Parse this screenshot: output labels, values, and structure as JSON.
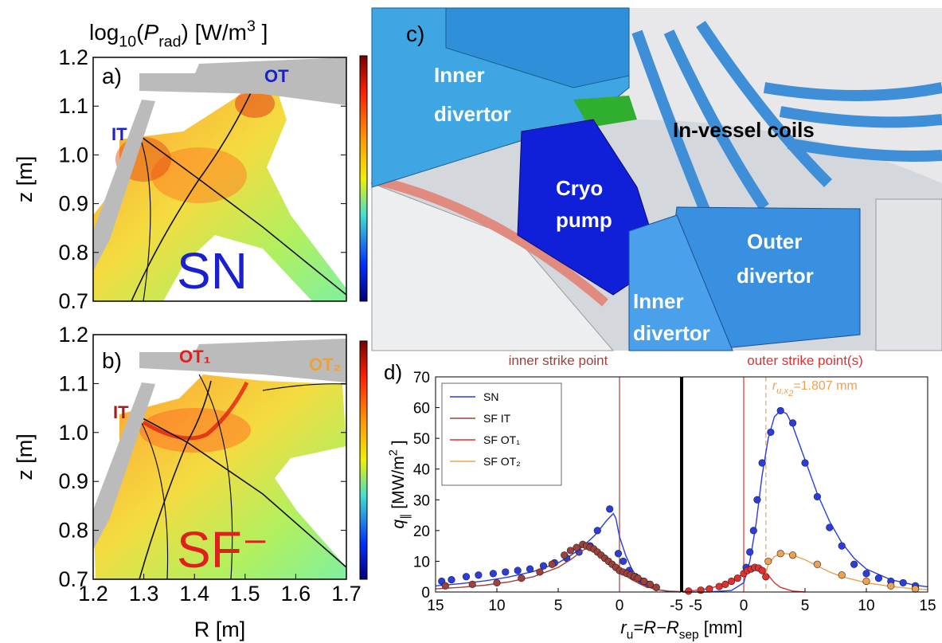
{
  "chart_data": [
    {
      "type": "heatmap",
      "panel_label": "a)",
      "title": [
        "log",
        "10",
        "(",
        "P",
        "rad",
        ") [W/m",
        "3",
        " ]"
      ],
      "ylabel": "z [m]",
      "ylim": [
        0.7,
        1.2
      ],
      "yticks": [
        0.7,
        0.8,
        0.9,
        {
          "value": 1.0,
          "label": "1.0"
        },
        1.1,
        1.2
      ],
      "labels": [
        "OT",
        "IT"
      ],
      "big_label": "SN"
    },
    {
      "type": "heatmap",
      "panel_label": "b)",
      "ylabel": "z [m]",
      "xlabel": "R [m]",
      "xlim": [
        1.2,
        1.7
      ],
      "xticks": [
        1.2,
        1.3,
        1.4,
        1.5,
        1.6,
        1.7
      ],
      "ylim": [
        0.7,
        1.2
      ],
      "yticks": [
        0.7,
        0.8,
        0.9,
        {
          "value": 1.0,
          "label": "1.0"
        },
        1.1,
        1.2
      ],
      "labels": [
        "OT₁",
        "OT₂",
        "IT"
      ],
      "big_label": "SF⁻"
    },
    {
      "type": "line",
      "panel_label": "d)",
      "ylabel": [
        "q",
        "∥",
        " [MW/m",
        "2",
        " ]"
      ],
      "xlabel": [
        "r",
        "u",
        "=R−R",
        "sep",
        " [mm]"
      ],
      "xlim": [
        15,
        -5
      ],
      "xticks": [
        15,
        10,
        5,
        0,
        -5
      ],
      "ylim": [
        0,
        70
      ],
      "yticks": [
        0,
        10,
        20,
        30,
        40,
        50,
        60,
        70
      ],
      "vline": {
        "x": 0,
        "color": "#a0403a",
        "label": "inner strike point"
      },
      "series": [
        {
          "name": "SN",
          "color": "#2b3de0",
          "x": [
            15,
            13,
            11,
            9,
            7,
            5,
            4,
            3,
            2,
            1.5,
            1,
            0.5,
            0.3,
            0,
            -0.5,
            -1,
            -1.5,
            -2,
            -3,
            -4,
            -5
          ],
          "values": [
            2,
            2.7,
            3.6,
            4.9,
            6.7,
            9.5,
            11.8,
            14.8,
            18.5,
            21,
            23.5,
            25.5,
            24,
            18,
            12,
            7.5,
            4.5,
            2.5,
            0.8,
            0.2,
            0
          ],
          "points": {
            "x": [
              14.5,
              13.7,
              12.5,
              11.5,
              10.3,
              9.3,
              8.3,
              7.3,
              6.2,
              5.3,
              4.3,
              3.3,
              2.4,
              1.8,
              0.8,
              0.1,
              -0.3,
              -0.8,
              -1.3,
              -1.8,
              -2.3,
              -3
            ],
            "values": [
              3.5,
              4,
              5,
              5.5,
              6,
              6.5,
              7,
              7.5,
              8.5,
              9.5,
              11,
              13,
              15,
              20,
              27,
              12.5,
              10,
              7,
              5,
              3.5,
              2.5,
              1.5
            ]
          }
        },
        {
          "name": "SF IT",
          "color": "#a0403a",
          "x": [
            15,
            13,
            11,
            9,
            7,
            5,
            4,
            3,
            2.5,
            2,
            1,
            0,
            -1,
            -2,
            -3,
            -4,
            -5
          ],
          "values": [
            1,
            1.5,
            2.2,
            3.3,
            5,
            8,
            10.5,
            13.5,
            14.8,
            14.5,
            11,
            7,
            4,
            2,
            0.8,
            0.3,
            0.1
          ],
          "points": {
            "x": [
              14.2,
              12,
              10,
              8,
              6.5,
              5.5,
              4.5,
              4,
              3.5,
              3,
              2.7,
              2.4,
              2.1,
              1.8,
              1.5,
              1.2,
              0.9,
              0.6,
              0.3,
              0,
              -0.3,
              -0.6,
              -0.9,
              -1.2,
              -1.5,
              -2,
              -2.5,
              -3
            ],
            "values": [
              2,
              2.5,
              3,
              4.5,
              6.5,
              9,
              12,
              13.5,
              14.5,
              15.5,
              15,
              14.5,
              14,
              13,
              12,
              11,
              10,
              9,
              8,
              7,
              6.5,
              6,
              5.5,
              5,
              4.5,
              3.5,
              2.5,
              1.5
            ]
          }
        }
      ]
    },
    {
      "type": "line",
      "xlim": [
        -5,
        15
      ],
      "xticks": [
        -5,
        0,
        5,
        10,
        15
      ],
      "ylim": [
        0,
        70
      ],
      "vline": {
        "x": 0,
        "color": "#e03030",
        "label": "outer strike point(s)"
      },
      "annotation": {
        "value": 1.807,
        "color": "#f0a050",
        "parts": [
          "r",
          "u,x",
          "2",
          "="
        ],
        "unit": " mm"
      },
      "series": [
        {
          "color": "#2b3de0",
          "x": [
            -5,
            -3,
            -1,
            0,
            0.5,
            1,
            1.5,
            2,
            2.5,
            3,
            3.5,
            4,
            5,
            6,
            7,
            8,
            9,
            10,
            12,
            14,
            15
          ],
          "values": [
            0,
            0,
            0.5,
            3,
            10,
            22,
            38,
            50,
            57,
            59,
            58,
            54,
            43,
            32,
            23,
            16,
            11,
            7.5,
            4,
            2.2,
            1.7
          ],
          "points": {
            "x": [
              0.2,
              0.5,
              0.8,
              1.1,
              1.5,
              2.2,
              3,
              4,
              5,
              6,
              7,
              8,
              9,
              10,
              11,
              12,
              13,
              14
            ],
            "values": [
              8,
              13,
              20,
              30,
              42,
              52,
              59,
              55,
              42,
              31,
              21,
              15,
              9,
              6,
              4.5,
              3.5,
              3,
              2
            ]
          }
        },
        {
          "name": "SF OT₁",
          "color": "#e03030",
          "x": [
            -5,
            -4,
            -3,
            -2,
            -1,
            0,
            0.5,
            1,
            1.5,
            2,
            2.5,
            3,
            4,
            5
          ],
          "values": [
            0.2,
            0.5,
            1,
            2,
            3.5,
            6,
            7.5,
            8,
            7.5,
            5.5,
            3,
            1.5,
            0.3,
            0
          ],
          "points": {
            "x": [
              -4.5,
              -3.5,
              -2.8,
              -2,
              -1.5,
              -1,
              -0.5,
              0,
              0.3,
              0.6,
              0.9,
              1.2,
              1.5,
              1.8
            ],
            "values": [
              0.3,
              0.6,
              1,
              1.8,
              2.5,
              3.5,
              4.5,
              6,
              7,
              7.5,
              8,
              7.8,
              7,
              5
            ]
          }
        },
        {
          "name": "SF OT₂",
          "color": "#f0a050",
          "x": [
            1.807,
            2,
            2.5,
            3,
            3.5,
            4,
            5,
            6,
            7,
            8,
            10,
            12,
            14,
            15
          ],
          "values": [
            6,
            9,
            11.5,
            12.5,
            12.5,
            12,
            10.5,
            8.5,
            6.5,
            5,
            3,
            1.8,
            1,
            0.8
          ],
          "points": {
            "x": [
              2,
              3,
              4,
              6,
              8,
              10,
              12,
              14
            ],
            "values": [
              10,
              12.5,
              12,
              9,
              5.5,
              3.5,
              2,
              1
            ]
          }
        }
      ]
    }
  ],
  "photo": {
    "panel_label": "c)",
    "labels": [
      [
        "Inner",
        "divertor"
      ],
      [
        "Cryo",
        "pump"
      ],
      [
        "In-vessel coils"
      ],
      [
        "Outer",
        "divertor"
      ],
      [
        "Inner",
        "divertor"
      ]
    ]
  }
}
